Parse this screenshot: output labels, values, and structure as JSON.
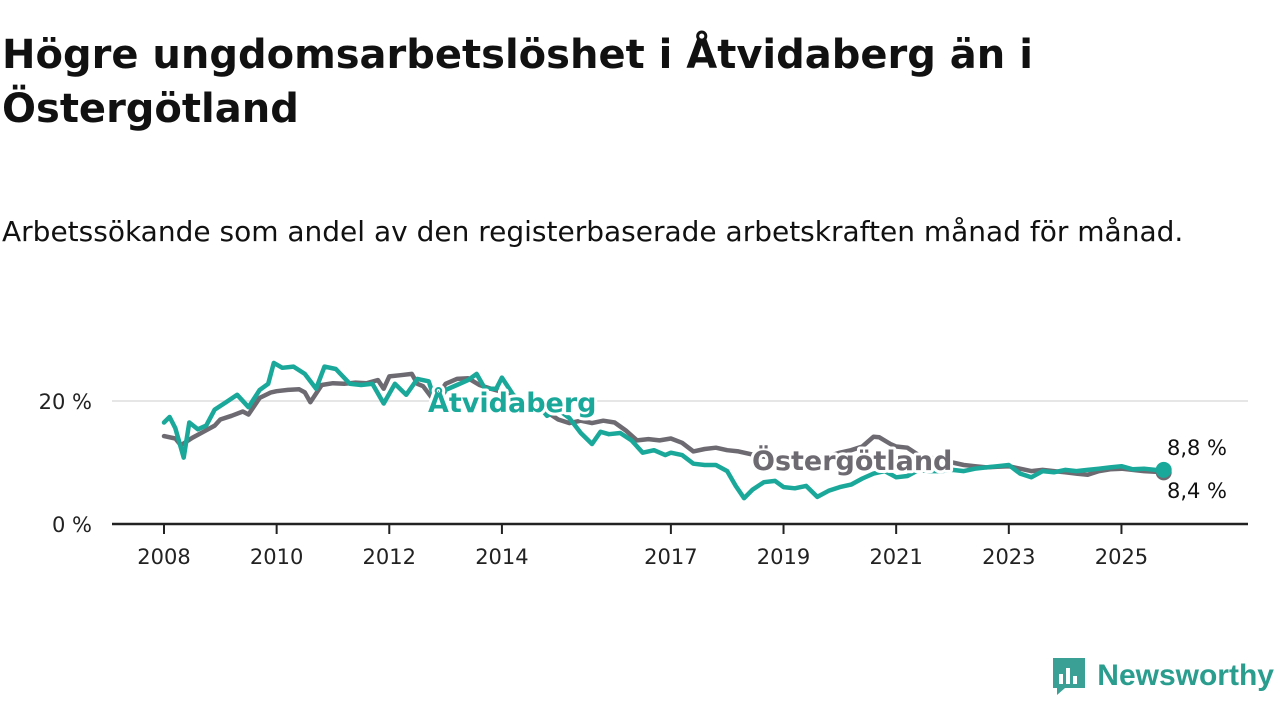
{
  "title": "Högre ungdomsarbetslöshet i Åtvidaberg än i Östergötland",
  "subtitle": "Arbetssökande som andel av den registerbaserade arbetskraften månad för månad.",
  "brand": "Newsworthy",
  "colors": {
    "atvidaberg": "#1aa89a",
    "ostergotland": "#6e6a72",
    "grid": "#dddddd",
    "axis": "#222222"
  },
  "chart_data": {
    "type": "line",
    "title": "Högre ungdomsarbetslöshet i Åtvidaberg än i Östergötland",
    "ylim": [
      0,
      30
    ],
    "xlim": [
      2008.0,
      2026.4
    ],
    "yticks": [
      {
        "value": 0,
        "label": "0 %"
      },
      {
        "value": 20,
        "label": "20 %"
      }
    ],
    "xticks": [
      {
        "value": 2008.0,
        "label": "2008"
      },
      {
        "value": 2010.0,
        "label": "2010"
      },
      {
        "value": 2012.0,
        "label": "2012"
      },
      {
        "value": 2014.0,
        "label": "2014"
      },
      {
        "value": 2017.0,
        "label": "2017"
      },
      {
        "value": 2019.0,
        "label": "2019"
      },
      {
        "value": 2021.0,
        "label": "2021"
      },
      {
        "value": 2023.0,
        "label": "2023"
      },
      {
        "value": 2025.0,
        "label": "2025"
      }
    ],
    "series": [
      {
        "name": "Östergötland",
        "label": "Östergötland",
        "end_label": "8,4 %",
        "points": [
          [
            2008.0,
            14.3
          ],
          [
            2008.2,
            13.9
          ],
          [
            2008.3,
            12.8
          ],
          [
            2008.5,
            14.0
          ],
          [
            2008.7,
            15.0
          ],
          [
            2008.9,
            16.0
          ],
          [
            2009.0,
            17.0
          ],
          [
            2009.2,
            17.6
          ],
          [
            2009.4,
            18.3
          ],
          [
            2009.5,
            17.8
          ],
          [
            2009.7,
            20.5
          ],
          [
            2009.9,
            21.4
          ],
          [
            2010.0,
            21.6
          ],
          [
            2010.2,
            21.8
          ],
          [
            2010.4,
            21.9
          ],
          [
            2010.5,
            21.4
          ],
          [
            2010.6,
            19.8
          ],
          [
            2010.8,
            22.6
          ],
          [
            2011.0,
            22.9
          ],
          [
            2011.2,
            22.8
          ],
          [
            2011.4,
            23.0
          ],
          [
            2011.6,
            22.9
          ],
          [
            2011.8,
            23.4
          ],
          [
            2011.9,
            22.0
          ],
          [
            2012.0,
            24.0
          ],
          [
            2012.2,
            24.2
          ],
          [
            2012.4,
            24.4
          ],
          [
            2012.5,
            22.8
          ],
          [
            2012.6,
            22.4
          ],
          [
            2012.8,
            20.0
          ],
          [
            2013.0,
            22.8
          ],
          [
            2013.2,
            23.6
          ],
          [
            2013.4,
            23.7
          ],
          [
            2013.6,
            22.6
          ],
          [
            2013.8,
            22.0
          ],
          [
            2014.0,
            21.5
          ],
          [
            2014.2,
            20.5
          ],
          [
            2014.4,
            19.8
          ],
          [
            2014.6,
            19.0
          ],
          [
            2014.8,
            18.2
          ],
          [
            2015.0,
            17.0
          ],
          [
            2015.2,
            16.4
          ],
          [
            2015.4,
            16.8
          ],
          [
            2015.6,
            16.4
          ],
          [
            2015.8,
            16.8
          ],
          [
            2016.0,
            16.5
          ],
          [
            2016.2,
            15.2
          ],
          [
            2016.4,
            13.6
          ],
          [
            2016.6,
            13.8
          ],
          [
            2016.8,
            13.6
          ],
          [
            2017.0,
            13.9
          ],
          [
            2017.2,
            13.2
          ],
          [
            2017.4,
            11.8
          ],
          [
            2017.6,
            12.2
          ],
          [
            2017.8,
            12.4
          ],
          [
            2018.0,
            12.0
          ],
          [
            2018.2,
            11.8
          ],
          [
            2018.4,
            11.4
          ],
          [
            2018.6,
            11.0
          ],
          [
            2018.8,
            10.8
          ],
          [
            2019.0,
            10.6
          ],
          [
            2019.2,
            10.5
          ],
          [
            2019.4,
            10.4
          ],
          [
            2019.6,
            10.6
          ],
          [
            2019.8,
            11.0
          ],
          [
            2020.0,
            11.6
          ],
          [
            2020.2,
            12.0
          ],
          [
            2020.4,
            12.6
          ],
          [
            2020.6,
            14.2
          ],
          [
            2020.7,
            14.1
          ],
          [
            2020.9,
            13.0
          ],
          [
            2021.0,
            12.6
          ],
          [
            2021.2,
            12.4
          ],
          [
            2021.4,
            11.2
          ],
          [
            2021.6,
            10.8
          ],
          [
            2021.8,
            10.4
          ],
          [
            2022.0,
            10.0
          ],
          [
            2022.2,
            9.6
          ],
          [
            2022.4,
            9.4
          ],
          [
            2022.6,
            9.2
          ],
          [
            2022.8,
            9.3
          ],
          [
            2023.0,
            9.4
          ],
          [
            2023.2,
            9.0
          ],
          [
            2023.4,
            8.6
          ],
          [
            2023.6,
            8.8
          ],
          [
            2023.8,
            8.6
          ],
          [
            2024.0,
            8.4
          ],
          [
            2024.2,
            8.2
          ],
          [
            2024.4,
            8.0
          ],
          [
            2024.6,
            8.6
          ],
          [
            2024.8,
            8.9
          ],
          [
            2025.0,
            9.0
          ],
          [
            2025.2,
            8.8
          ],
          [
            2025.4,
            8.6
          ],
          [
            2025.6,
            8.5
          ],
          [
            2025.75,
            8.4
          ]
        ]
      },
      {
        "name": "Åtvidaberg",
        "label": "Åtvidaberg",
        "end_label": "8,8 %",
        "points": [
          [
            2008.0,
            16.5
          ],
          [
            2008.1,
            17.4
          ],
          [
            2008.2,
            15.6
          ],
          [
            2008.35,
            10.8
          ],
          [
            2008.45,
            16.5
          ],
          [
            2008.6,
            15.4
          ],
          [
            2008.75,
            16.0
          ],
          [
            2008.9,
            18.6
          ],
          [
            2009.1,
            19.8
          ],
          [
            2009.3,
            21.0
          ],
          [
            2009.5,
            19.0
          ],
          [
            2009.7,
            21.8
          ],
          [
            2009.85,
            22.8
          ],
          [
            2009.95,
            26.2
          ],
          [
            2010.1,
            25.4
          ],
          [
            2010.3,
            25.6
          ],
          [
            2010.5,
            24.4
          ],
          [
            2010.7,
            22.0
          ],
          [
            2010.85,
            25.6
          ],
          [
            2011.05,
            25.2
          ],
          [
            2011.3,
            22.8
          ],
          [
            2011.5,
            22.6
          ],
          [
            2011.7,
            22.8
          ],
          [
            2011.9,
            19.6
          ],
          [
            2012.1,
            22.8
          ],
          [
            2012.3,
            21.0
          ],
          [
            2012.5,
            23.6
          ],
          [
            2012.7,
            23.2
          ],
          [
            2012.85,
            19.0
          ],
          [
            2013.0,
            21.8
          ],
          [
            2013.2,
            22.6
          ],
          [
            2013.4,
            23.4
          ],
          [
            2013.55,
            24.4
          ],
          [
            2013.7,
            22.0
          ],
          [
            2013.9,
            22.0
          ],
          [
            2014.0,
            23.8
          ],
          [
            2014.2,
            21.0
          ],
          [
            2014.4,
            19.6
          ],
          [
            2014.6,
            19.8
          ],
          [
            2014.8,
            17.6
          ],
          [
            2015.0,
            18.6
          ],
          [
            2015.2,
            17.2
          ],
          [
            2015.4,
            14.8
          ],
          [
            2015.6,
            13.0
          ],
          [
            2015.75,
            15.0
          ],
          [
            2015.9,
            14.6
          ],
          [
            2016.1,
            14.8
          ],
          [
            2016.3,
            13.6
          ],
          [
            2016.5,
            11.6
          ],
          [
            2016.7,
            12.0
          ],
          [
            2016.9,
            11.2
          ],
          [
            2017.0,
            11.6
          ],
          [
            2017.2,
            11.2
          ],
          [
            2017.4,
            9.8
          ],
          [
            2017.6,
            9.6
          ],
          [
            2017.8,
            9.6
          ],
          [
            2018.0,
            8.6
          ],
          [
            2018.15,
            6.2
          ],
          [
            2018.3,
            4.2
          ],
          [
            2018.45,
            5.6
          ],
          [
            2018.65,
            6.8
          ],
          [
            2018.85,
            7.0
          ],
          [
            2019.0,
            6.0
          ],
          [
            2019.2,
            5.8
          ],
          [
            2019.4,
            6.2
          ],
          [
            2019.6,
            4.4
          ],
          [
            2019.8,
            5.4
          ],
          [
            2020.0,
            6.0
          ],
          [
            2020.2,
            6.4
          ],
          [
            2020.4,
            7.4
          ],
          [
            2020.6,
            8.2
          ],
          [
            2020.8,
            8.6
          ],
          [
            2021.0,
            7.6
          ],
          [
            2021.2,
            7.8
          ],
          [
            2021.4,
            8.8
          ],
          [
            2021.6,
            8.6
          ],
          [
            2021.8,
            8.6
          ],
          [
            2022.0,
            8.8
          ],
          [
            2022.2,
            8.6
          ],
          [
            2022.4,
            9.0
          ],
          [
            2022.6,
            9.2
          ],
          [
            2022.8,
            9.4
          ],
          [
            2023.0,
            9.6
          ],
          [
            2023.2,
            8.2
          ],
          [
            2023.4,
            7.6
          ],
          [
            2023.6,
            8.6
          ],
          [
            2023.8,
            8.4
          ],
          [
            2024.0,
            8.8
          ],
          [
            2024.2,
            8.6
          ],
          [
            2024.4,
            8.8
          ],
          [
            2024.6,
            9.0
          ],
          [
            2024.8,
            9.2
          ],
          [
            2025.0,
            9.4
          ],
          [
            2025.2,
            8.9
          ],
          [
            2025.4,
            9.0
          ],
          [
            2025.6,
            8.8
          ],
          [
            2025.75,
            8.8
          ]
        ]
      }
    ]
  }
}
